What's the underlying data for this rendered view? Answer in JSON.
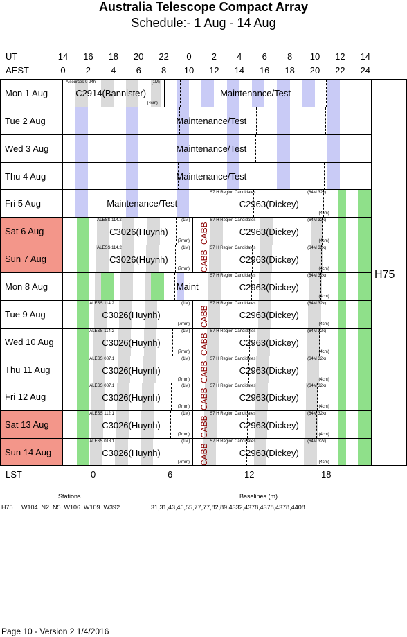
{
  "title": "Australia Telescope Compact Array",
  "subtitle": "Schedule:- 1  Aug - 14 Aug",
  "ut_label": "UT",
  "aest_label": "AEST",
  "ut_ticks": [
    "14",
    "16",
    "18",
    "20",
    "22",
    "0",
    "2",
    "4",
    "6",
    "8",
    "10",
    "12",
    "14"
  ],
  "aest_ticks": [
    "0",
    "2",
    "4",
    "6",
    "8",
    "10",
    "12",
    "14",
    "16",
    "18",
    "20",
    "22",
    "24"
  ],
  "lst_label": "LST",
  "lst_ticks": [
    "0",
    "6",
    "12",
    "18"
  ],
  "config": "H75",
  "stations_label": "Stations",
  "stations": "H75     W104  N2  N5  W106  W109  W392",
  "baselines_label": "Baselines (m)",
  "baselines": "31,31,43,46,55,77,77,82,89,4332,4378,4378,4378,4408",
  "footer": "Page 10 - Version 2  1/4/2016",
  "rows": [
    {
      "day": "Mon   1  Aug",
      "weekend": false,
      "blocks": [
        {
          "text": "C2914(Bannister)",
          "top_left": "A   sources 0 24h",
          "top_right": "(1M)",
          "bottom_right": "(4cm)"
        },
        {
          "text": "Maintenance/Test"
        }
      ]
    },
    {
      "day": "Tue   2  Aug",
      "weekend": false,
      "blocks": [
        {
          "text": "Maintenance/Test"
        }
      ]
    },
    {
      "day": "Wed   3  Aug",
      "weekend": false,
      "blocks": [
        {
          "text": "Maintenance/Test"
        }
      ]
    },
    {
      "day": "Thu   4  Aug",
      "weekend": false,
      "blocks": [
        {
          "text": "Maintenance/Test"
        }
      ]
    },
    {
      "day": "Fri    5  Aug",
      "weekend": false,
      "blocks": [
        {
          "text": "Maintenance/Test"
        },
        {
          "text": "C2963(Dickey)",
          "top_left": "S7  H   Region Candidates",
          "top_right": "(64M 32k)",
          "bottom_right": "(4cm)"
        }
      ]
    },
    {
      "day": "Sat    6  Aug",
      "weekend": true,
      "blocks": [
        {
          "text": "C3026(Huynh)",
          "top_left": "ALESS 114.2",
          "top_right": "(1M)",
          "bottom_right": "(7mm)"
        },
        {
          "text": "CABB"
        },
        {
          "text": "C2963(Dickey)",
          "top_left": "S7  H   Region Candidates",
          "top_right": "(64M 32k)",
          "bottom_right": "(4cm)"
        }
      ]
    },
    {
      "day": "Sun   7  Aug",
      "weekend": true,
      "blocks": [
        {
          "text": "C3026(Huynh)",
          "top_left": "ALESS 114.2",
          "top_right": "(1M)",
          "bottom_right": "(7mm)"
        },
        {
          "text": "CABB"
        },
        {
          "text": "C2963(Dickey)",
          "top_left": "S7  H   Region Candidates",
          "top_right": "(64M 32k)",
          "bottom_right": "(4cm)"
        }
      ]
    },
    {
      "day": "Mon   8  Aug",
      "weekend": false,
      "blocks": [
        {
          "text": "Maint"
        },
        {
          "text": "C2963(Dickey)",
          "top_left": "S7  H   Region Candidates",
          "top_right": "(64M 32k)",
          "bottom_right": "(4cm)"
        }
      ]
    },
    {
      "day": "Tue    9  Aug",
      "weekend": false,
      "blocks": [
        {
          "text": "C3026(Huynh)",
          "top_left": "ALESS 114.2",
          "top_right": "(1M)",
          "bottom_right": "(7mm)"
        },
        {
          "text": "CABB"
        },
        {
          "text": "C2963(Dickey)",
          "top_left": "S7  H   Region Candidates",
          "top_right": "(64M 32k)",
          "bottom_right": "(4cm)"
        }
      ]
    },
    {
      "day": "Wed  10 Aug",
      "weekend": false,
      "blocks": [
        {
          "text": "C3026(Huynh)",
          "top_left": "ALESS 114.2",
          "top_right": "(1M)",
          "bottom_right": "(7mm)"
        },
        {
          "text": "CABB"
        },
        {
          "text": "C2963(Dickey)",
          "top_left": "S7  H   Region Candidates",
          "top_right": "(64M 32k)",
          "bottom_right": "(4cm)"
        }
      ]
    },
    {
      "day": "Thu   11  Aug",
      "weekend": false,
      "blocks": [
        {
          "text": "C3026(Huynh)",
          "top_left": "ALESS 087.1",
          "top_right": "(1M)",
          "bottom_right": "(7mm)"
        },
        {
          "text": "CABB"
        },
        {
          "text": "C2963(Dickey)",
          "top_left": "S7  H   Region Candidates",
          "top_right": "(64M 32k)",
          "bottom_right": "(4cm)"
        }
      ]
    },
    {
      "day": "Fri    12  Aug",
      "weekend": false,
      "blocks": [
        {
          "text": "C3026(Huynh)",
          "top_left": "ALESS 087.1",
          "top_right": "(1M)",
          "bottom_right": "(7mm)"
        },
        {
          "text": "CABB"
        },
        {
          "text": "C2963(Dickey)",
          "top_left": "S7  H   Region Candidates",
          "top_right": "(64M 32k)",
          "bottom_right": "(4cm)"
        }
      ]
    },
    {
      "day": "Sat   13  Aug",
      "weekend": true,
      "blocks": [
        {
          "text": "C3026(Huynh)",
          "top_left": "ALESS 112.1",
          "top_right": "(1M)",
          "bottom_right": "(7mm)"
        },
        {
          "text": "CABB"
        },
        {
          "text": "C2963(Dickey)",
          "top_left": "S7  H   Region Candidates",
          "top_right": "(64M 32k)",
          "bottom_right": "(4cm)"
        }
      ]
    },
    {
      "day": "Sun  14  Aug",
      "weekend": true,
      "blocks": [
        {
          "text": "C3026(Huynh)",
          "top_left": "ALESS 018.1",
          "top_right": "(1M)",
          "bottom_right": "(7mm)"
        },
        {
          "text": "CABB"
        },
        {
          "text": "C2963(Dickey)",
          "top_left": "S7  H   Region Candidates",
          "top_right": "(64M 32k)",
          "bottom_right": "(4cm)"
        }
      ]
    }
  ],
  "colors": {
    "night": "#c9cbf6",
    "grey": "#dadada",
    "green": "#8fe08a",
    "weekend": "#f3968a"
  }
}
